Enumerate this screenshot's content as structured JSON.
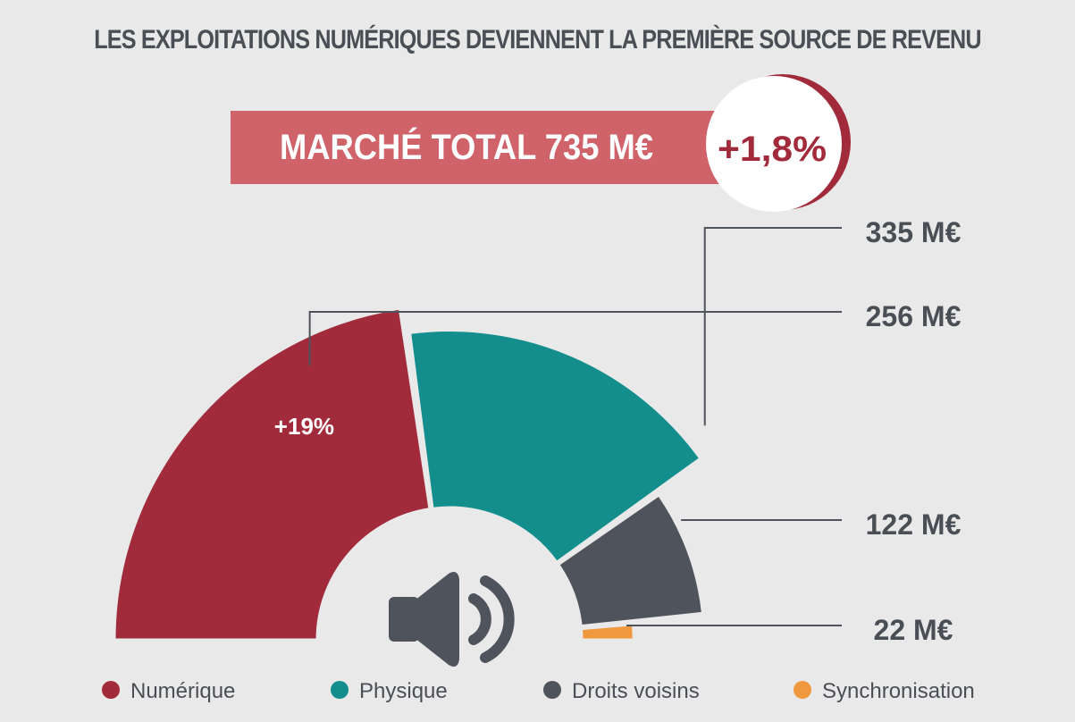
{
  "title": "LES EXPLOITATIONS NUMÉRIQUES DEVIENNENT LA PREMIÈRE SOURCE DE REVENU",
  "banner": {
    "label": "MARCHÉ TOTAL 735 M€",
    "growth": "+1,8%"
  },
  "chart_data": {
    "type": "pie",
    "shape": "semi-donut",
    "unit": "M€",
    "total": 735,
    "slices": [
      {
        "label": "Numérique",
        "value": 335,
        "value_label": "335 M€",
        "inner_label": "+19%",
        "color": "#a22b3b"
      },
      {
        "label": "Physique",
        "value": 256,
        "value_label": "256 M€",
        "inner_label": "",
        "color": "#138e8c"
      },
      {
        "label": "Droits voisins",
        "value": 122,
        "value_label": "122 M€",
        "inner_label": "",
        "color": "#4f535c"
      },
      {
        "label": "Synchronisation",
        "value": 22,
        "value_label": "22 M€",
        "inner_label": "",
        "color": "#f0983e"
      }
    ],
    "legend_position": "bottom"
  },
  "colors": {
    "background": "#e9e9ea",
    "banner_fill": "#d0636a",
    "growth_text": "#a22b3b",
    "label_text": "#4a4e55",
    "leader_line": "#4f535c",
    "speaker_icon": "#4f535c"
  },
  "center_icon": "speaker-icon"
}
